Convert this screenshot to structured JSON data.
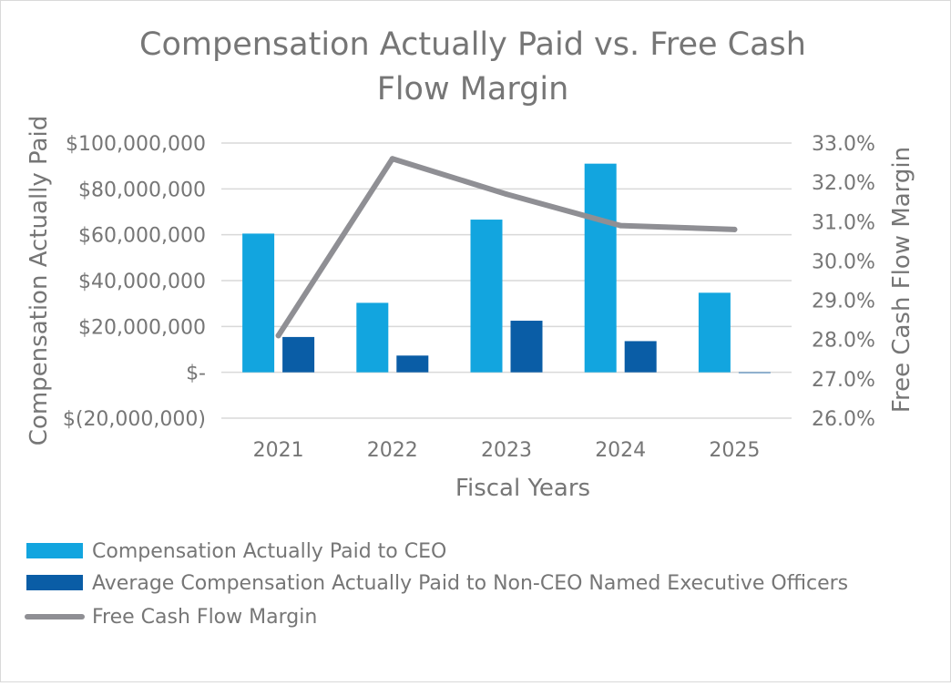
{
  "chart_data": {
    "type": "bar",
    "title_lines": [
      "Compensation Actually Paid vs. Free Cash",
      "Flow Margin"
    ],
    "xlabel": "Fiscal Years",
    "ylabel_left": "Compensation Actually Paid",
    "ylabel_right": "Free Cash Flow Margin",
    "categories": [
      "2021",
      "2022",
      "2023",
      "2024",
      "2025"
    ],
    "left_axis": {
      "ylim": [
        -20000000,
        100000000
      ],
      "ticks": [
        100000000,
        80000000,
        60000000,
        40000000,
        20000000,
        0,
        -20000000
      ],
      "tick_labels": [
        "$100,000,000",
        "$80,000,000",
        "$60,000,000",
        "$40,000,000",
        "$20,000,000",
        "$-",
        "$(20,000,000)"
      ]
    },
    "right_axis": {
      "ylim": [
        26.0,
        33.0
      ],
      "ticks": [
        33.0,
        32.0,
        31.0,
        30.0,
        29.0,
        28.0,
        27.0,
        26.0
      ],
      "tick_labels": [
        "33.0%",
        "32.0%",
        "31.0%",
        "30.0%",
        "29.0%",
        "28.0%",
        "27.0%",
        "26.0%"
      ]
    },
    "series": [
      {
        "name": "Compensation Actually Paid to CEO",
        "type": "bar",
        "axis": "left",
        "color": "#12A5DF",
        "values": [
          60500000,
          30300000,
          66600000,
          91000000,
          34700000
        ]
      },
      {
        "name": "Average Compensation Actually Paid to Non-CEO Named Executive Officers",
        "type": "bar",
        "axis": "left",
        "color": "#0A5DA6",
        "values": [
          15400000,
          7300000,
          22500000,
          13600000,
          -200000
        ]
      },
      {
        "name": "Free Cash Flow Margin",
        "type": "line",
        "axis": "right",
        "color": "#8F8F94",
        "values": [
          28.1,
          32.6,
          31.7,
          30.9,
          30.8
        ]
      }
    ],
    "grid": true,
    "legend_position": "bottom-left"
  }
}
